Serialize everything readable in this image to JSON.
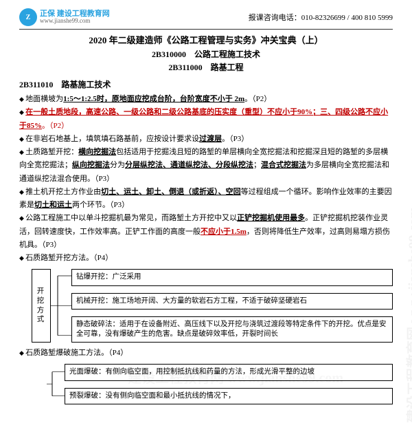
{
  "header": {
    "brand_title": "正保 建设工程教育网",
    "brand_url": "www.jianshe99.com",
    "hotline_label": "报课咨询电话：",
    "hotline_numbers": "010-82326699 / 400 810 5999",
    "logo_char": "Z"
  },
  "titles": {
    "main": "2020 年二级建造师《公路工程管理与实务》冲关宝典（上）",
    "line2": "2B310000　公路工程施工技术",
    "line3": "2B311000　路基工程"
  },
  "section": {
    "code": "2B311010",
    "name": "路基施工技术"
  },
  "bullets": [
    {
      "segments": [
        {
          "t": "地面横坡为",
          "cls": ""
        },
        {
          "t": "1:5～1:2.5时，原地面应挖成台阶，台阶宽度不小于 2m",
          "cls": "u b"
        },
        {
          "t": "。（P2）",
          "cls": ""
        }
      ]
    },
    {
      "segments": [
        {
          "t": "在一般土质地段，高速公路、一级公路和二级公路基底的压实度（重型）不应小于90%；三、四级公路不应小于85%",
          "cls": "u b red"
        },
        {
          "t": "。（P2）",
          "cls": "red"
        }
      ]
    },
    {
      "segments": [
        {
          "t": "在非岩石地基上，填筑填石路基前，应按设计要求设",
          "cls": ""
        },
        {
          "t": "过渡层",
          "cls": "u b"
        },
        {
          "t": "。（P3）",
          "cls": ""
        }
      ]
    },
    {
      "segments": [
        {
          "t": "土质路堑开挖：",
          "cls": ""
        },
        {
          "t": "横向挖掘法",
          "cls": "u b"
        },
        {
          "t": "包括适用于挖掘浅且短的路堑的单层横向全宽挖掘法和挖掘深且短的路堑的多层横向全宽挖掘法；",
          "cls": ""
        },
        {
          "t": "纵向挖掘法",
          "cls": "u b"
        },
        {
          "t": "分为",
          "cls": ""
        },
        {
          "t": "分层纵挖法、通道纵挖法、分段纵挖法",
          "cls": "u b"
        },
        {
          "t": "；",
          "cls": ""
        },
        {
          "t": "混合式挖掘法",
          "cls": "u b"
        },
        {
          "t": "为多层横向全宽挖掘法和通道纵挖法混合使用。（P3）",
          "cls": ""
        }
      ]
    },
    {
      "segments": [
        {
          "t": "推土机开挖土方作业由",
          "cls": ""
        },
        {
          "t": "切土、运土、卸土、倒退（或折返）、空回",
          "cls": "u b"
        },
        {
          "t": "等过程组成一个循环。影响作业效率的主要因素是",
          "cls": ""
        },
        {
          "t": "切土和运土",
          "cls": "u b"
        },
        {
          "t": "两个环节。（P3）",
          "cls": ""
        }
      ]
    },
    {
      "segments": [
        {
          "t": "公路工程施工中以单斗挖掘机最为常见，而路堑土方开挖中又以",
          "cls": ""
        },
        {
          "t": "正铲挖掘机使用最多",
          "cls": "u b"
        },
        {
          "t": "。正铲挖掘机挖装作业灵活，回转速度快，工作效率高。正铲工作面的高度一般",
          "cls": ""
        },
        {
          "t": "不应小于1.5m",
          "cls": "u b red"
        },
        {
          "t": "，否则将降低生产效率，过高则易塌方损伤机具。（P3）",
          "cls": ""
        }
      ]
    },
    {
      "segments": [
        {
          "t": "石质路堑开挖方法。（P4）",
          "cls": ""
        }
      ]
    }
  ],
  "tree1": {
    "root": "开挖方式",
    "items": [
      {
        "label": "钻爆开挖：",
        "text": "广泛采用"
      },
      {
        "label": "机械开挖：",
        "text": "施工场地开阔、大方量的软岩石方工程，不适于破碎坚硬岩石"
      },
      {
        "label": "静态破碎法：",
        "text": "适用于在设备附近、高压线下以及开挖与浇筑过渡段等特定条件下的开挖。优点是安全可靠，没有爆破产生的危害。缺点是破碎效率低，开裂时间长"
      }
    ]
  },
  "bullets2": [
    {
      "segments": [
        {
          "t": "石质路堑爆破施工方法。（P4）",
          "cls": ""
        }
      ]
    }
  ],
  "tree2": {
    "items": [
      {
        "label": "光面爆破：",
        "text": "有侧向临空面，用控制抵抗线和药量的方法，形成光滑平整的边坡"
      },
      {
        "label": "预裂爆破：",
        "text": "没有侧向临空面和最小抵抗线的情况下，"
      }
    ]
  },
  "watermark": "建设工程教育网 www.jianshe99.com"
}
